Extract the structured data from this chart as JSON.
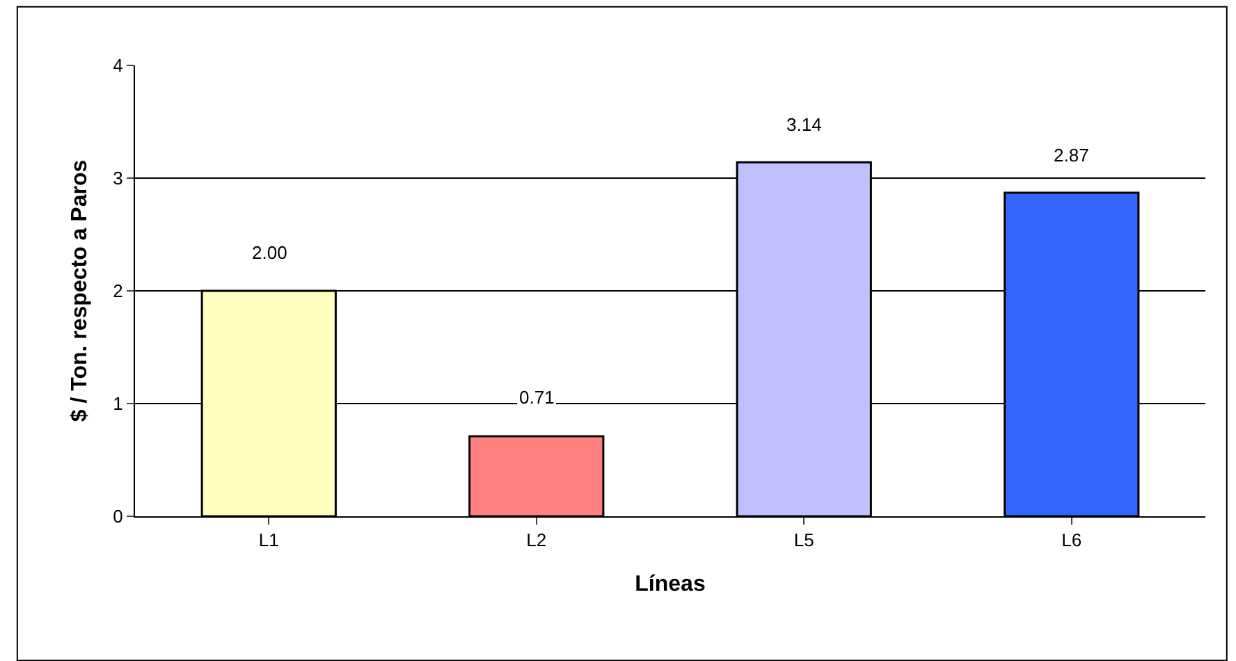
{
  "chart_data": {
    "type": "bar",
    "categories": [
      "L1",
      "L2",
      "L5",
      "L6"
    ],
    "values": [
      2.0,
      0.71,
      3.14,
      2.87
    ],
    "colors": [
      "#ffffc0",
      "#ff8080",
      "#c0c0ff",
      "#3366ff"
    ],
    "value_labels": [
      "2.00",
      "0.71",
      "3.14",
      "2.87"
    ],
    "xlabel": "Líneas",
    "ylabel": "$ / Ton. respecto a Paros",
    "ylim": [
      0,
      4
    ],
    "yticks": [
      0,
      1,
      2,
      3,
      4
    ],
    "grid": "y",
    "legend": false
  }
}
